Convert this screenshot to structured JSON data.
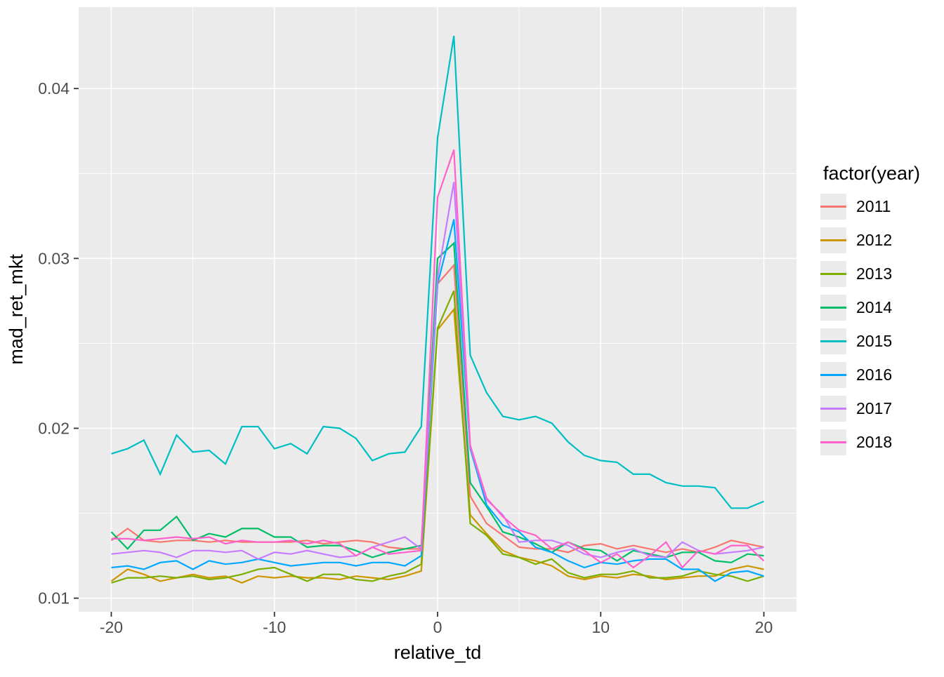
{
  "chart_data": {
    "type": "line",
    "title": "",
    "xlabel": "relative_td",
    "ylabel": "mad_ret_mkt",
    "legend_title": "factor(year)",
    "legend_position": "right",
    "grid": "on",
    "panel_bg": "#ebebeb",
    "grid_color": "#ffffff",
    "tick_color": "#333333",
    "tick_label_color": "#4d4d4d",
    "xlim": [
      -22,
      22
    ],
    "ylim": [
      0.0092,
      0.0448
    ],
    "x_ticks": {
      "major": [
        -20,
        -10,
        0,
        10,
        20
      ],
      "major_labels": [
        "-20",
        "-10",
        "0",
        "10",
        "20"
      ],
      "minor": [
        -15,
        -5,
        5,
        15
      ]
    },
    "y_ticks": {
      "major": [
        0.01,
        0.02,
        0.03,
        0.04
      ],
      "major_labels": [
        "0.01",
        "0.02",
        "0.03",
        "0.04"
      ],
      "minor": [
        0.015,
        0.025,
        0.035
      ]
    },
    "x": [
      -20,
      -19,
      -18,
      -17,
      -16,
      -15,
      -14,
      -13,
      -12,
      -11,
      -10,
      -9,
      -8,
      -7,
      -6,
      -5,
      -4,
      -3,
      -2,
      -1,
      0,
      1,
      2,
      3,
      4,
      5,
      6,
      7,
      8,
      9,
      10,
      11,
      12,
      13,
      14,
      15,
      16,
      17,
      18,
      19,
      20
    ],
    "series": [
      {
        "name": "2011",
        "color": "#F8766D",
        "values": [
          0.0134,
          0.0141,
          0.0134,
          0.0133,
          0.0134,
          0.0134,
          0.0133,
          0.0134,
          0.0133,
          0.0133,
          0.0133,
          0.0133,
          0.0134,
          0.0132,
          0.0133,
          0.0134,
          0.0133,
          0.013,
          0.0129,
          0.0129,
          0.0285,
          0.0296,
          0.016,
          0.0144,
          0.0137,
          0.013,
          0.0129,
          0.0129,
          0.0127,
          0.0131,
          0.0132,
          0.0129,
          0.0131,
          0.0129,
          0.0127,
          0.0129,
          0.0127,
          0.013,
          0.0134,
          0.0132,
          0.013
        ]
      },
      {
        "name": "2012",
        "color": "#CD9600",
        "values": [
          0.011,
          0.0117,
          0.0114,
          0.011,
          0.0112,
          0.0114,
          0.0112,
          0.0113,
          0.0109,
          0.0113,
          0.0112,
          0.0113,
          0.0112,
          0.0112,
          0.0111,
          0.0113,
          0.0112,
          0.0111,
          0.0113,
          0.0116,
          0.0258,
          0.027,
          0.0149,
          0.0138,
          0.0128,
          0.0124,
          0.0122,
          0.0119,
          0.0113,
          0.0111,
          0.0113,
          0.0112,
          0.0114,
          0.0113,
          0.0111,
          0.0112,
          0.0113,
          0.0113,
          0.0117,
          0.0119,
          0.0117
        ]
      },
      {
        "name": "2013",
        "color": "#7CAE00",
        "values": [
          0.0109,
          0.0112,
          0.0112,
          0.0113,
          0.0112,
          0.0113,
          0.0111,
          0.0112,
          0.0114,
          0.0117,
          0.0118,
          0.0114,
          0.011,
          0.0114,
          0.0114,
          0.0111,
          0.011,
          0.0113,
          0.0115,
          0.012,
          0.0259,
          0.0281,
          0.0144,
          0.0137,
          0.0126,
          0.0124,
          0.012,
          0.0123,
          0.0115,
          0.0112,
          0.0114,
          0.0114,
          0.0116,
          0.0112,
          0.0112,
          0.0113,
          0.0116,
          0.0114,
          0.0113,
          0.011,
          0.0113
        ]
      },
      {
        "name": "2014",
        "color": "#00BE67",
        "values": [
          0.0139,
          0.0129,
          0.014,
          0.014,
          0.0148,
          0.0134,
          0.0138,
          0.0136,
          0.0141,
          0.0141,
          0.0136,
          0.0136,
          0.013,
          0.0131,
          0.0131,
          0.0128,
          0.0124,
          0.0127,
          0.0129,
          0.0131,
          0.03,
          0.0309,
          0.0168,
          0.0154,
          0.0139,
          0.0136,
          0.0132,
          0.0127,
          0.0133,
          0.0129,
          0.0128,
          0.0122,
          0.0128,
          0.0126,
          0.0124,
          0.0127,
          0.0127,
          0.0122,
          0.0121,
          0.0126,
          0.0125
        ]
      },
      {
        "name": "2015",
        "color": "#00BFC4",
        "values": [
          0.0185,
          0.0188,
          0.0193,
          0.0173,
          0.0196,
          0.0186,
          0.0187,
          0.0179,
          0.0201,
          0.0201,
          0.0188,
          0.0191,
          0.0185,
          0.0201,
          0.02,
          0.0194,
          0.0181,
          0.0185,
          0.0186,
          0.0201,
          0.0371,
          0.0431,
          0.0243,
          0.0221,
          0.0207,
          0.0205,
          0.0207,
          0.0203,
          0.0192,
          0.0184,
          0.0181,
          0.018,
          0.0173,
          0.0173,
          0.0168,
          0.0166,
          0.0166,
          0.0165,
          0.0153,
          0.0153,
          0.0157
        ]
      },
      {
        "name": "2016",
        "color": "#00A9FF",
        "values": [
          0.0118,
          0.0119,
          0.0117,
          0.0121,
          0.0122,
          0.0117,
          0.0122,
          0.012,
          0.0121,
          0.0123,
          0.0121,
          0.0119,
          0.012,
          0.0121,
          0.0121,
          0.0119,
          0.0121,
          0.0121,
          0.0119,
          0.0125,
          0.0285,
          0.0323,
          0.0188,
          0.0155,
          0.0143,
          0.0139,
          0.013,
          0.0127,
          0.0122,
          0.0118,
          0.0121,
          0.012,
          0.0122,
          0.0123,
          0.0123,
          0.0117,
          0.0117,
          0.011,
          0.0115,
          0.0116,
          0.0113
        ]
      },
      {
        "name": "2017",
        "color": "#C77CFF",
        "values": [
          0.0126,
          0.0127,
          0.0128,
          0.0127,
          0.0124,
          0.0128,
          0.0128,
          0.0127,
          0.0128,
          0.0123,
          0.0127,
          0.0126,
          0.0128,
          0.0126,
          0.0124,
          0.0125,
          0.013,
          0.0133,
          0.0136,
          0.0129,
          0.0289,
          0.0345,
          0.0189,
          0.0158,
          0.0149,
          0.0133,
          0.0134,
          0.0134,
          0.0131,
          0.0126,
          0.0124,
          0.0127,
          0.0129,
          0.0125,
          0.0124,
          0.0133,
          0.0128,
          0.0126,
          0.0127,
          0.0128,
          0.013
        ]
      },
      {
        "name": "2018",
        "color": "#FF61CC",
        "values": [
          0.0135,
          0.0135,
          0.0134,
          0.0135,
          0.0136,
          0.0135,
          0.0136,
          0.0132,
          0.0134,
          0.0133,
          0.0133,
          0.0134,
          0.0132,
          0.0134,
          0.0132,
          0.0125,
          0.013,
          0.0126,
          0.0127,
          0.0128,
          0.0336,
          0.0364,
          0.019,
          0.0159,
          0.0148,
          0.014,
          0.0137,
          0.0129,
          0.0133,
          0.0128,
          0.0121,
          0.0126,
          0.0118,
          0.0125,
          0.0133,
          0.0118,
          0.0128,
          0.0126,
          0.0131,
          0.0131,
          0.0122
        ]
      }
    ]
  }
}
